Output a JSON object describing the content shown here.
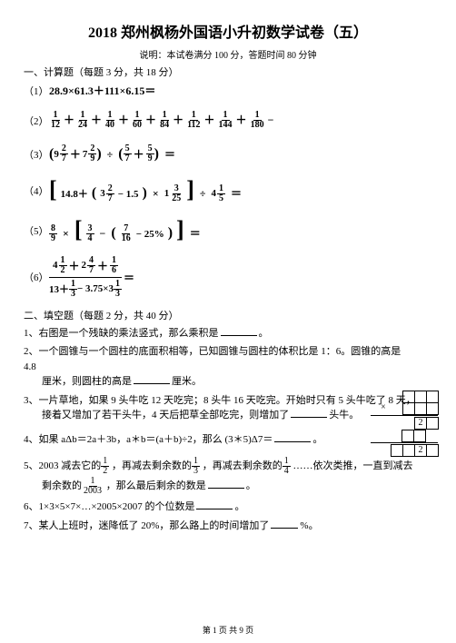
{
  "title": "2018 郑州枫杨外国语小升初数学试卷（五）",
  "subtitle": "说明：本试卷满分 100 分，答题时间 80 分钟",
  "sec1": "一、计算题（每题 3 分，共 18 分）",
  "sec2": "二、填空题（每题 2 分，共 40 分）",
  "footer": "第 1 页 共 9 页",
  "q1": {
    "num": "（1）",
    "expr": "28.9×61.3＋111×6.15＝"
  },
  "q2": {
    "num": "（2）",
    "terms": [
      [
        "1",
        "12"
      ],
      [
        "1",
        "24"
      ],
      [
        "1",
        "40"
      ],
      [
        "1",
        "60"
      ],
      [
        "1",
        "84"
      ],
      [
        "1",
        "112"
      ],
      [
        "1",
        "144"
      ],
      [
        "1",
        "180"
      ]
    ],
    "tail": "−"
  },
  "q3": {
    "num": "（3）",
    "a": [
      "9",
      "2",
      "7"
    ],
    "b": [
      "7",
      "2",
      "9"
    ],
    "c": [
      "5",
      "7"
    ],
    "d": [
      "5",
      "9"
    ],
    "eq": "＝"
  },
  "q4": {
    "num": "（4）",
    "a": "14.8＋",
    "b": [
      "3",
      "2",
      "7"
    ],
    "c": "− 1.5",
    "d": [
      "1",
      "3",
      "25"
    ],
    "e": [
      "4",
      "1",
      "5"
    ],
    "eq": "＝"
  },
  "q5": {
    "num": "（5）",
    "a": [
      "8",
      "9"
    ],
    "b": [
      "3",
      "4"
    ],
    "c": [
      "7",
      "16"
    ],
    "d": "− 25%",
    "eq": "＝"
  },
  "q6": {
    "num": "（6）",
    "tops": [
      [
        "4",
        "1",
        "2"
      ],
      [
        "2",
        "4",
        "7"
      ],
      [
        "1",
        "6"
      ]
    ],
    "bot1": "13＋",
    "botf": [
      "1",
      "3"
    ],
    "bot2": "− 3.75×3",
    "botf2": [
      "1",
      "3"
    ],
    "eq": "＝"
  },
  "f1": {
    "p": "1、右图是一个残缺的乘法竖式，那么乘积是",
    "tail": "。"
  },
  "f2": {
    "l1": "2、一个圆锥与一个圆柱的底面积相等，已知圆锥与圆柱的体积比是 1：6。圆锥的高是",
    "l2": "4.8",
    "l3": "厘米，则圆柱的高是",
    "l4": "厘米。"
  },
  "f3": {
    "l1": "3、一片草地，如果 9 头牛吃 12 天吃完；8 头牛 16 天吃完。开始时只有 5 头牛吃了 8 天，",
    "l2": "接着又增加了若干头牛，4 天后把草全部吃完，则增加了",
    "l3": "头牛。"
  },
  "f4": {
    "l1": "4、如果 aΔb＝2a＋3b，a＊b＝(a＋b)÷2，那么 (3＊5)Δ7＝",
    "tail": "。"
  },
  "f5": {
    "l1": "5、2003 减去它的",
    "f1": [
      "1",
      "2"
    ],
    "l2": "，再减去剩余数的",
    "f2": [
      "1",
      "3"
    ],
    "l3": "，再减去剩余数的",
    "f3": [
      "1",
      "4"
    ],
    "l4": "……依次类推，一直到减去",
    "l5": "剩余数的",
    "f4": [
      "1",
      "2003"
    ],
    "l6": "，那么最后剩余的数是",
    "tail": "。"
  },
  "f6": {
    "l1": "6、1×3×5×7×…×2005×2007 的个位数是",
    "tail": "。"
  },
  "f7": {
    "l1": "7、某人上班时，迷降低了 20%，那么路上的时间增加了",
    "tail": "%。"
  },
  "puzzle": {
    "r2val": "2",
    "r4val": "2"
  }
}
